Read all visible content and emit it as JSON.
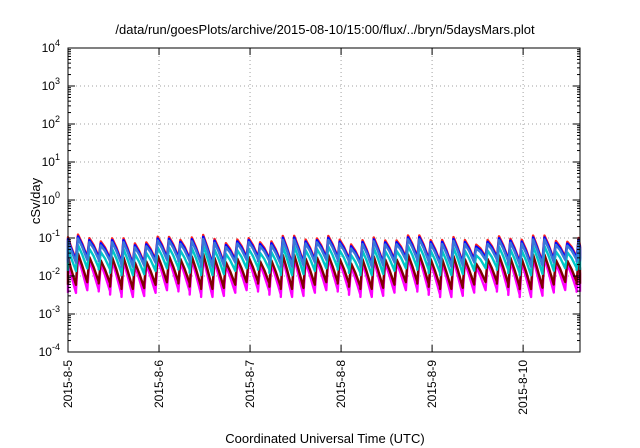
{
  "chart_data": {
    "type": "line",
    "title": "/data/run/goesPlots/archive/2015-08-10/15:00/flux/../bryn/5daysMars.plot",
    "xlabel": "Coordinated Universal Time (UTC)",
    "ylabel": "cSv/day",
    "y_scale": "log",
    "ylim": [
      0.0001,
      10000
    ],
    "y_ticks": [
      {
        "value": 0.0001,
        "base": "10",
        "exp": "-4"
      },
      {
        "value": 0.001,
        "base": "10",
        "exp": "-3"
      },
      {
        "value": 0.01,
        "base": "10",
        "exp": "-2"
      },
      {
        "value": 0.1,
        "base": "10",
        "exp": "-1"
      },
      {
        "value": 1,
        "base": "10",
        "exp": "0"
      },
      {
        "value": 10,
        "base": "10",
        "exp": "1"
      },
      {
        "value": 100,
        "base": "10",
        "exp": "2"
      },
      {
        "value": 1000,
        "base": "10",
        "exp": "3"
      },
      {
        "value": 10000,
        "base": "10",
        "exp": "4"
      }
    ],
    "xlim": [
      "2015-08-05",
      "2015-08-10 15:00"
    ],
    "x_ticks": [
      "2015-8-5",
      "2015-8-6",
      "2015-8-7",
      "2015-8-8",
      "2015-8-9",
      "2015-8-10"
    ],
    "grid": true,
    "legend": "none",
    "cycle_hours": 3,
    "series": [
      {
        "color": "#ff2222",
        "peak": 0.095,
        "trough": 0.03
      },
      {
        "color": "#0000ff",
        "peak": 0.085,
        "trough": 0.028
      },
      {
        "color": "#3a78d8",
        "peak": 0.075,
        "trough": 0.025
      },
      {
        "color": "#00c8c8",
        "peak": 0.05,
        "trough": 0.015
      },
      {
        "color": "#800000",
        "peak": 0.03,
        "trough": 0.0065
      },
      {
        "color": "#ff00ff",
        "peak": 0.025,
        "trough": 0.004
      }
    ]
  }
}
